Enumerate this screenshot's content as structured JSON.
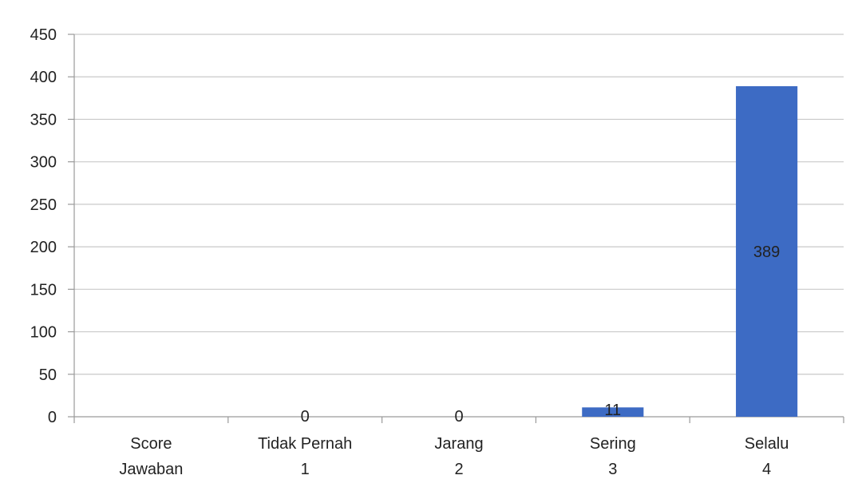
{
  "chart_data": {
    "type": "bar",
    "title": "",
    "xlabel": "",
    "ylabel": "",
    "ylim": [
      0,
      450
    ],
    "yticks": [
      0,
      50,
      100,
      150,
      200,
      250,
      300,
      350,
      400,
      450
    ],
    "grid": true,
    "legend": "none",
    "bar_color": "#3d6bc4",
    "categories": [
      {
        "line1": "Score",
        "line2": "Jawaban"
      },
      {
        "line1": "Tidak Pernah",
        "line2": "1"
      },
      {
        "line1": "Jarang",
        "line2": "2"
      },
      {
        "line1": "Sering",
        "line2": "3"
      },
      {
        "line1": "Selalu",
        "line2": "4"
      }
    ],
    "values": [
      null,
      0,
      0,
      11,
      389
    ],
    "data_labels": [
      "",
      "0",
      "0",
      "11",
      "389"
    ]
  }
}
